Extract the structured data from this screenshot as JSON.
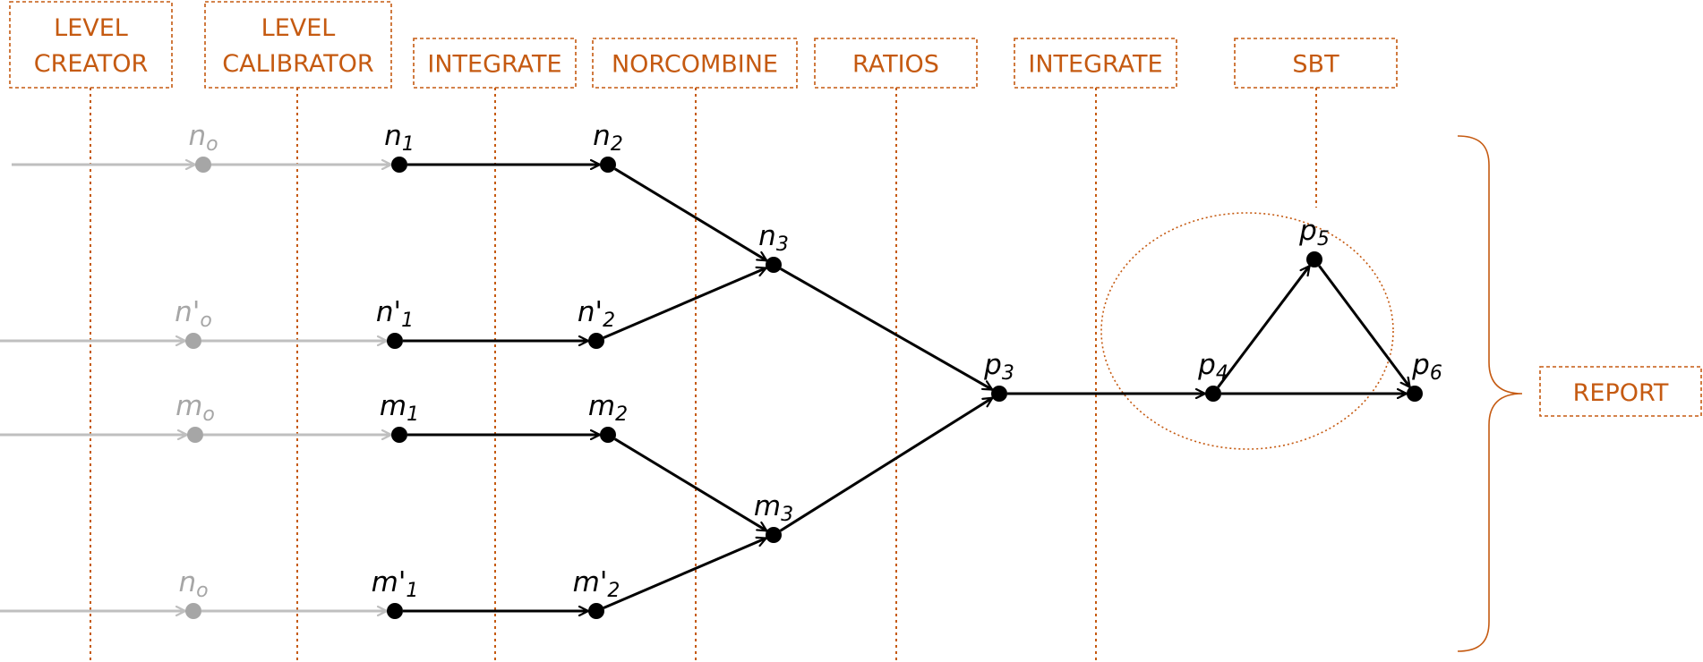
{
  "colors": {
    "accent": "#C55A11",
    "node_active": "#000000",
    "node_inactive": "#A6A6A6",
    "edge_inactive": "#BFBFBF"
  },
  "stages": [
    {
      "lines": [
        "LEVEL",
        "CREATOR"
      ]
    },
    {
      "lines": [
        "LEVEL",
        "CALIBRATOR"
      ]
    },
    {
      "lines": [
        "INTEGRATE"
      ]
    },
    {
      "lines": [
        "NORCOMBINE"
      ]
    },
    {
      "lines": [
        "RATIOS"
      ]
    },
    {
      "lines": [
        "INTEGRATE"
      ]
    },
    {
      "lines": [
        "SBT"
      ]
    }
  ],
  "report": {
    "label": "REPORT"
  },
  "nodes": [
    {
      "id": "n0a",
      "base": "n",
      "sub": "o",
      "inactive": true
    },
    {
      "id": "n1",
      "base": "n",
      "sub": "1"
    },
    {
      "id": "n2",
      "base": "n",
      "sub": "2"
    },
    {
      "id": "n3",
      "base": "n",
      "sub": "3"
    },
    {
      "id": "np0",
      "base": "n'",
      "sub": "o",
      "inactive": true
    },
    {
      "id": "np1",
      "base": "n'",
      "sub": "1"
    },
    {
      "id": "np2",
      "base": "n'",
      "sub": "2"
    },
    {
      "id": "m0",
      "base": "m",
      "sub": "o",
      "inactive": true
    },
    {
      "id": "m1",
      "base": "m",
      "sub": "1"
    },
    {
      "id": "m2",
      "base": "m",
      "sub": "2"
    },
    {
      "id": "m3",
      "base": "m",
      "sub": "3"
    },
    {
      "id": "n0b",
      "base": "n",
      "sub": "o",
      "inactive": true
    },
    {
      "id": "mp1",
      "base": "m'",
      "sub": "1"
    },
    {
      "id": "mp2",
      "base": "m'",
      "sub": "2"
    },
    {
      "id": "p3",
      "base": "p",
      "sub": "3"
    },
    {
      "id": "p4",
      "base": "p",
      "sub": "4"
    },
    {
      "id": "p5",
      "base": "p",
      "sub": "5"
    },
    {
      "id": "p6",
      "base": "p",
      "sub": "6"
    }
  ],
  "edges": [
    {
      "from": "n0a",
      "to": "n1",
      "inactive": true
    },
    {
      "from": "n1",
      "to": "n2"
    },
    {
      "from": "n2",
      "to": "n3"
    },
    {
      "from": "np0",
      "to": "np1",
      "inactive": true
    },
    {
      "from": "np1",
      "to": "np2"
    },
    {
      "from": "np2",
      "to": "n3"
    },
    {
      "from": "m0",
      "to": "m1",
      "inactive": true
    },
    {
      "from": "m1",
      "to": "m2"
    },
    {
      "from": "m2",
      "to": "m3"
    },
    {
      "from": "n0b",
      "to": "mp1",
      "inactive": true
    },
    {
      "from": "mp1",
      "to": "mp2"
    },
    {
      "from": "mp2",
      "to": "m3"
    },
    {
      "from": "n3",
      "to": "p3"
    },
    {
      "from": "m3",
      "to": "p3"
    },
    {
      "from": "p3",
      "to": "p4"
    },
    {
      "from": "p4",
      "to": "p5"
    },
    {
      "from": "p5",
      "to": "p6"
    },
    {
      "from": "p4",
      "to": "p6"
    }
  ]
}
